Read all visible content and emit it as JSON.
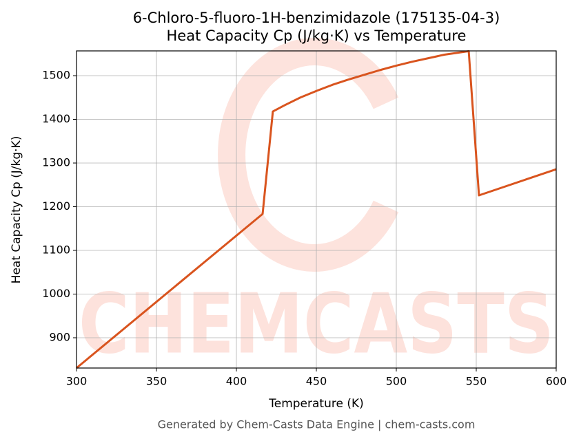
{
  "chart_data": {
    "type": "line",
    "title": [
      "6-Chloro-5-fluoro-1H-benzimidazole (175135-04-3)",
      "Heat Capacity Cp (J/kg·K) vs Temperature"
    ],
    "x_label": "Temperature (K)",
    "y_label": "Heat Capacity Cp (J/kg·K)",
    "footer": "Generated by Chem-Casts Data Engine | chem-casts.com",
    "watermark": "CHEMCASTS",
    "x": [
      300,
      416.4,
      422.8,
      430,
      440,
      450,
      460,
      470,
      480,
      490,
      500,
      510,
      520,
      530,
      545.3,
      551.7,
      600
    ],
    "series": [
      {
        "name": "Cp",
        "color": "#d9541e",
        "values": [
          830.7,
          1183.5,
          1418,
          1432,
          1450,
          1465,
          1479,
          1491,
          1502,
          1513,
          1523,
          1532,
          1540,
          1548,
          1556,
          1226,
          1285.8
        ]
      }
    ],
    "xlim": [
      300,
      600
    ],
    "ylim": [
      830.7,
      1556.7
    ],
    "xticks": [
      300,
      350,
      400,
      450,
      500,
      550,
      600
    ],
    "yticks": [
      900,
      1000,
      1100,
      1200,
      1300,
      1400,
      1500
    ],
    "grid": true
  }
}
